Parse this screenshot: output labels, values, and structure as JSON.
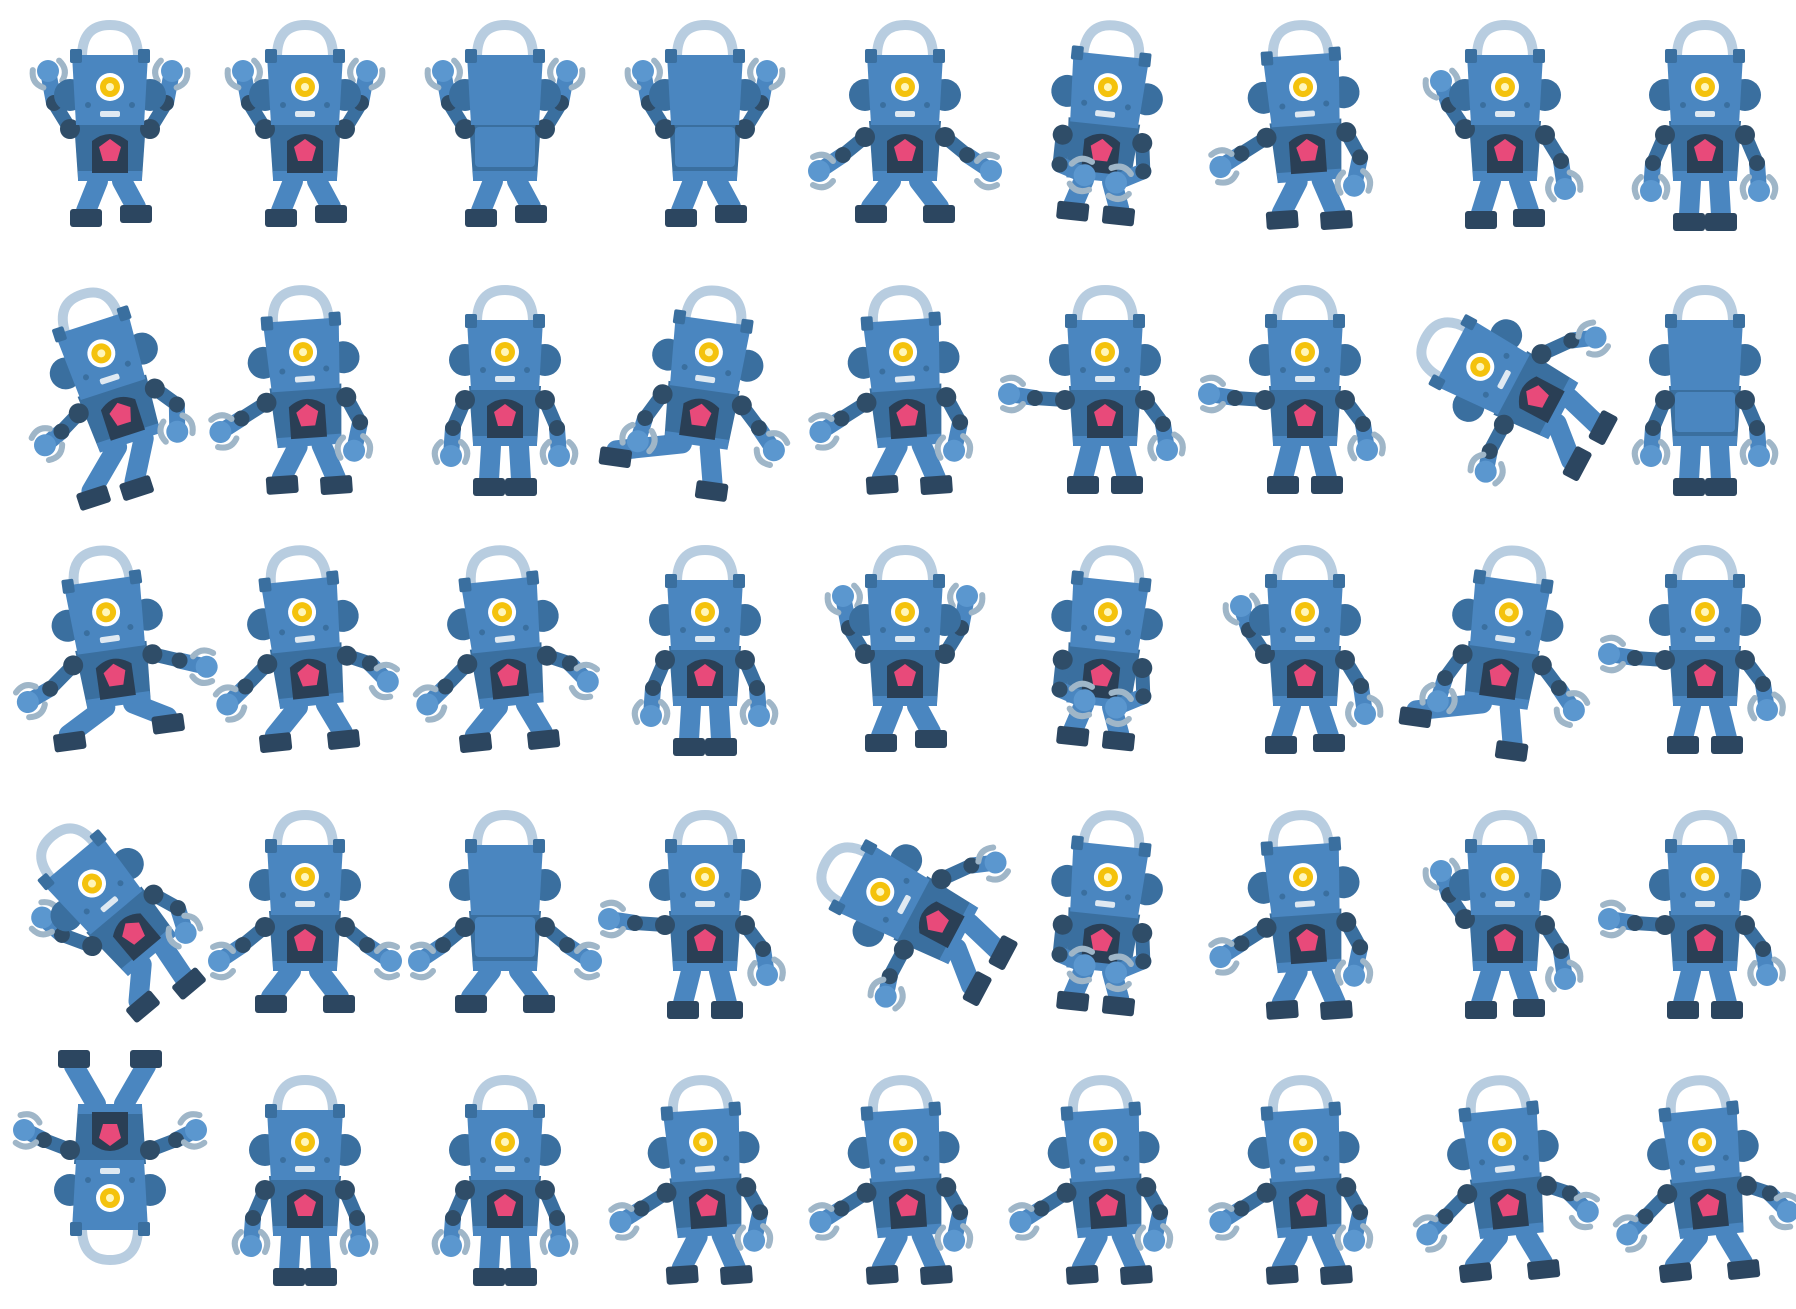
{
  "sprite_sheet": {
    "rows": 5,
    "columns": 9,
    "background": "#ffffff",
    "palette": {
      "body": "#4a86c0",
      "body_light": "#5b97cf",
      "body_dark": "#3a6f9f",
      "joint": "#2f4d68",
      "foot": "#2c4660",
      "eye_ring": "#ffffff",
      "eye": "#f4c20d",
      "eye_core": "#fff6b8",
      "chest_socket": "#2a3f55",
      "gem": "#e84a7a",
      "antenna_loop": "#b8cde0",
      "claw": "#9fb6c8",
      "mouth": "#dfe9f2"
    },
    "frames": [
      {
        "pose": "arms-raised",
        "facing": "front"
      },
      {
        "pose": "arms-raised",
        "facing": "front"
      },
      {
        "pose": "arms-raised",
        "facing": "back"
      },
      {
        "pose": "arms-raised",
        "facing": "back"
      },
      {
        "pose": "crouch-wide",
        "facing": "front"
      },
      {
        "pose": "crouch-hug",
        "facing": "front"
      },
      {
        "pose": "walk",
        "facing": "front"
      },
      {
        "pose": "wave",
        "facing": "front"
      },
      {
        "pose": "idle",
        "facing": "front"
      },
      {
        "pose": "fall",
        "facing": "front"
      },
      {
        "pose": "walk",
        "facing": "front"
      },
      {
        "pose": "idle",
        "facing": "front"
      },
      {
        "pose": "kick",
        "facing": "front"
      },
      {
        "pose": "walk",
        "facing": "front"
      },
      {
        "pose": "punch",
        "facing": "front"
      },
      {
        "pose": "punch",
        "facing": "front"
      },
      {
        "pose": "lying",
        "facing": "front"
      },
      {
        "pose": "idle",
        "facing": "back"
      },
      {
        "pose": "jump",
        "facing": "front"
      },
      {
        "pose": "run",
        "facing": "front"
      },
      {
        "pose": "run",
        "facing": "front"
      },
      {
        "pose": "idle",
        "facing": "front"
      },
      {
        "pose": "arms-raised",
        "facing": "front"
      },
      {
        "pose": "crouch-hug",
        "facing": "front"
      },
      {
        "pose": "wave",
        "facing": "front"
      },
      {
        "pose": "kick",
        "facing": "front"
      },
      {
        "pose": "punch",
        "facing": "front"
      },
      {
        "pose": "flip",
        "facing": "front"
      },
      {
        "pose": "crouch-wide",
        "facing": "front"
      },
      {
        "pose": "crouch-wide",
        "facing": "back"
      },
      {
        "pose": "punch",
        "facing": "front"
      },
      {
        "pose": "lying",
        "facing": "front"
      },
      {
        "pose": "crouch-hug",
        "facing": "front"
      },
      {
        "pose": "walk",
        "facing": "front"
      },
      {
        "pose": "wave",
        "facing": "front"
      },
      {
        "pose": "punch",
        "facing": "front"
      },
      {
        "pose": "handstand",
        "facing": "front"
      },
      {
        "pose": "idle",
        "facing": "front"
      },
      {
        "pose": "idle",
        "facing": "front"
      },
      {
        "pose": "walk",
        "facing": "front"
      },
      {
        "pose": "walk",
        "facing": "front"
      },
      {
        "pose": "walk",
        "facing": "front"
      },
      {
        "pose": "walk",
        "facing": "front"
      },
      {
        "pose": "run",
        "facing": "front"
      },
      {
        "pose": "run",
        "facing": "front"
      }
    ]
  }
}
